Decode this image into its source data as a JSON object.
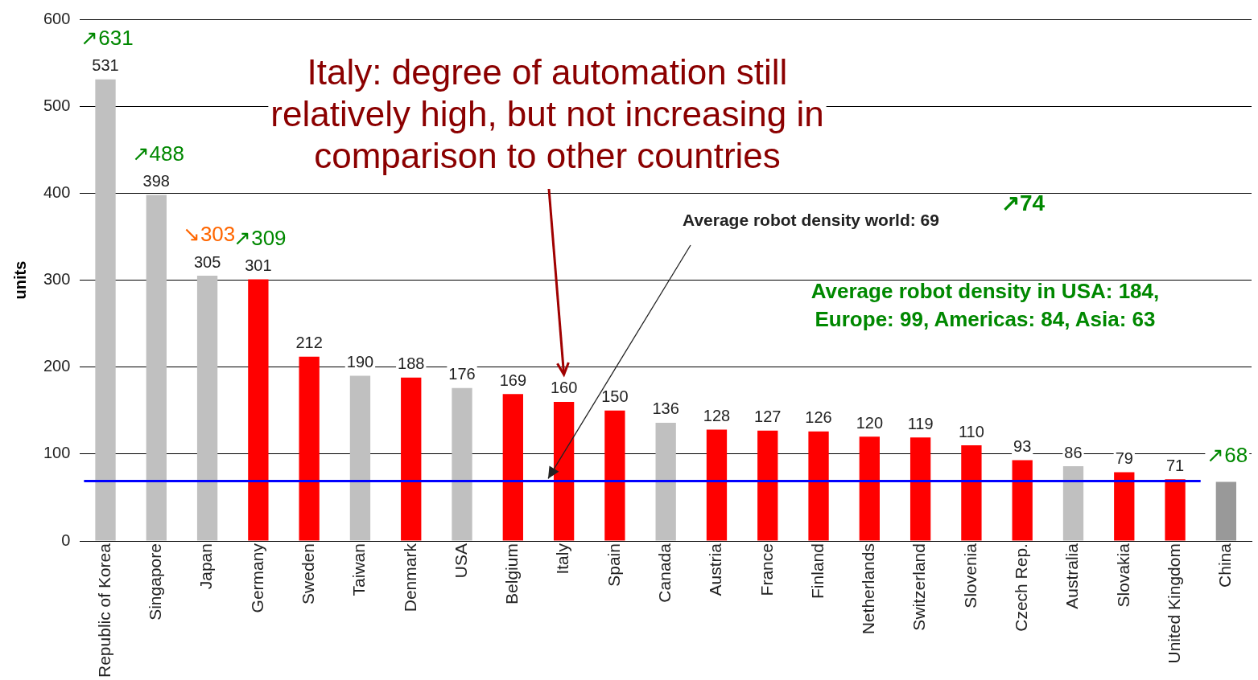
{
  "chart_data": {
    "type": "bar",
    "ylabel": "units",
    "categories": [
      "Republic of Korea",
      "Singapore",
      "Japan",
      "Germany",
      "Sweden",
      "Taiwan",
      "Denmark",
      "USA",
      "Belgium",
      "Italy",
      "Spain",
      "Canada",
      "Austria",
      "France",
      "Finland",
      "Netherlands",
      "Switzerland",
      "Slovenia",
      "Czech Rep.",
      "Australia",
      "Slovakia",
      "United Kingdom",
      "China"
    ],
    "values": [
      531,
      398,
      305,
      301,
      212,
      190,
      188,
      176,
      169,
      160,
      150,
      136,
      128,
      127,
      126,
      120,
      119,
      110,
      93,
      86,
      79,
      71,
      68
    ],
    "colors": [
      "#c0c0c0",
      "#c0c0c0",
      "#c0c0c0",
      "#ff0000",
      "#ff0000",
      "#c0c0c0",
      "#ff0000",
      "#c0c0c0",
      "#ff0000",
      "#ff0000",
      "#ff0000",
      "#c0c0c0",
      "#ff0000",
      "#ff0000",
      "#ff0000",
      "#ff0000",
      "#ff0000",
      "#ff0000",
      "#ff0000",
      "#c0c0c0",
      "#ff0000",
      "#ff0000",
      "#999999"
    ],
    "value_labels": [
      "531",
      "398",
      "305",
      "301",
      "212",
      "190",
      "188",
      "176",
      "169",
      "160",
      "150",
      "136",
      "128",
      "127",
      "126",
      "120",
      "119",
      "110",
      "93",
      "86",
      "79",
      "71",
      null
    ],
    "ylim": [
      0,
      600
    ],
    "yticks": [
      0,
      100,
      200,
      300,
      400,
      500,
      600
    ],
    "grid": "y",
    "ref_lines": [
      {
        "axis": "y",
        "value": 69,
        "label": "Average robot density world: 69",
        "color": "#0000ff"
      }
    ],
    "annotations": [
      "Italy: degree of automation still relatively high, but not increasing in comparison to other countries",
      "Average robot density in USA: 184, Europe: 99, Americas: 84, Asia: 63",
      "↗74",
      {
        "text": "↗631",
        "x": "Republic of Korea",
        "y": 531
      },
      {
        "text": "↗488",
        "x": "Singapore",
        "y": 398
      },
      {
        "text": "↘303",
        "x": "Japan",
        "y": 305
      },
      {
        "text": "↗309",
        "x": "Germany",
        "y": 301
      },
      {
        "text": "↗68",
        "x": "China",
        "y": 68
      }
    ]
  }
}
